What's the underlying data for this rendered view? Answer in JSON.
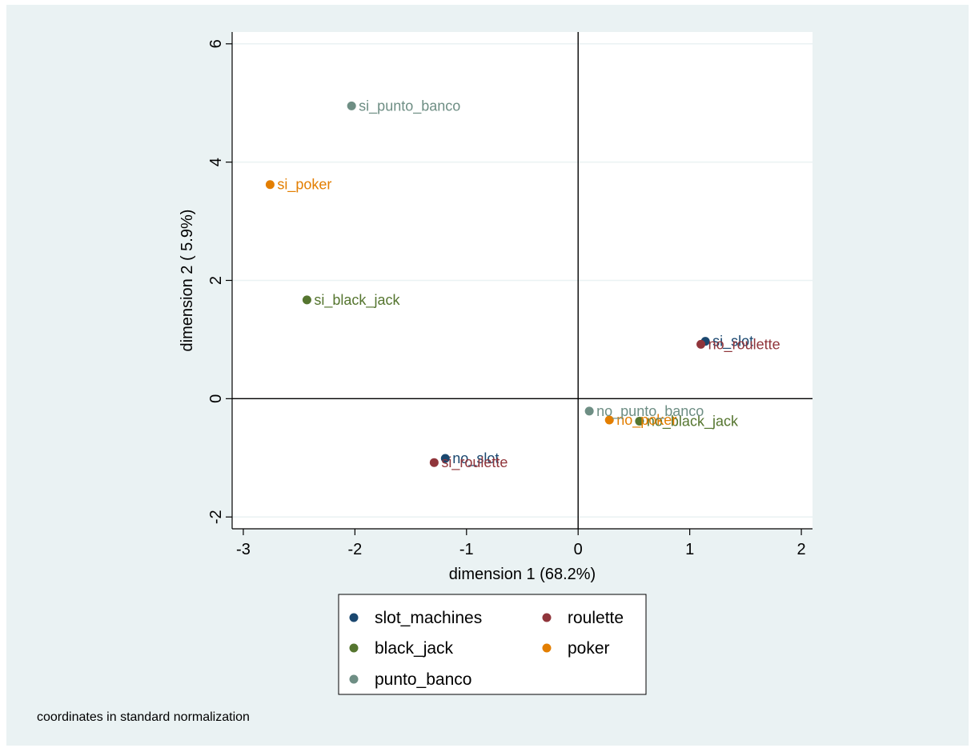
{
  "chart_data": {
    "type": "scatter",
    "xlabel": "dimension 1 (68.2%)",
    "ylabel": "dimension 2 ( 5.9%)",
    "xlim": [
      -3.1,
      2.1
    ],
    "ylim": [
      -2.2,
      6.2
    ],
    "xticks": [
      -3,
      -2,
      -1,
      0,
      1,
      2
    ],
    "yticks": [
      -2,
      0,
      2,
      4,
      6
    ],
    "xtick_labels": [
      "-3",
      "-2",
      "-1",
      "0",
      "1",
      "2"
    ],
    "ytick_labels": [
      "-2",
      "0",
      "2",
      "4",
      "6"
    ],
    "grid": true,
    "reference_lines": {
      "x": 0,
      "y": 0
    },
    "legend_position": "bottom",
    "series": [
      {
        "name": "slot_machines",
        "color": "#1a476f",
        "points": [
          {
            "label": "si_slot",
            "x": 1.14,
            "y": 0.97
          },
          {
            "label": "no_slot",
            "x": -1.19,
            "y": -1.01
          }
        ]
      },
      {
        "name": "roulette",
        "color": "#90353b",
        "points": [
          {
            "label": "no_roulette",
            "x": 1.1,
            "y": 0.92
          },
          {
            "label": "si_roulette",
            "x": -1.29,
            "y": -1.08
          }
        ]
      },
      {
        "name": "black_jack",
        "color": "#55752f",
        "points": [
          {
            "label": "si_black_jack",
            "x": -2.43,
            "y": 1.67
          },
          {
            "label": "no_black_jack",
            "x": 0.55,
            "y": -0.38
          }
        ]
      },
      {
        "name": "poker",
        "color": "#e37e00",
        "points": [
          {
            "label": "si_poker",
            "x": -2.76,
            "y": 3.62
          },
          {
            "label": "no_poker",
            "x": 0.28,
            "y": -0.36
          }
        ]
      },
      {
        "name": "punto_banco",
        "color": "#6e8e84",
        "points": [
          {
            "label": "si_punto_banco",
            "x": -2.03,
            "y": 4.95
          },
          {
            "label": "no_punto_banco",
            "x": 0.1,
            "y": -0.21
          }
        ]
      }
    ],
    "legend_order": [
      "slot_machines",
      "roulette",
      "black_jack",
      "poker",
      "punto_banco"
    ],
    "note": "coordinates in standard normalization"
  }
}
